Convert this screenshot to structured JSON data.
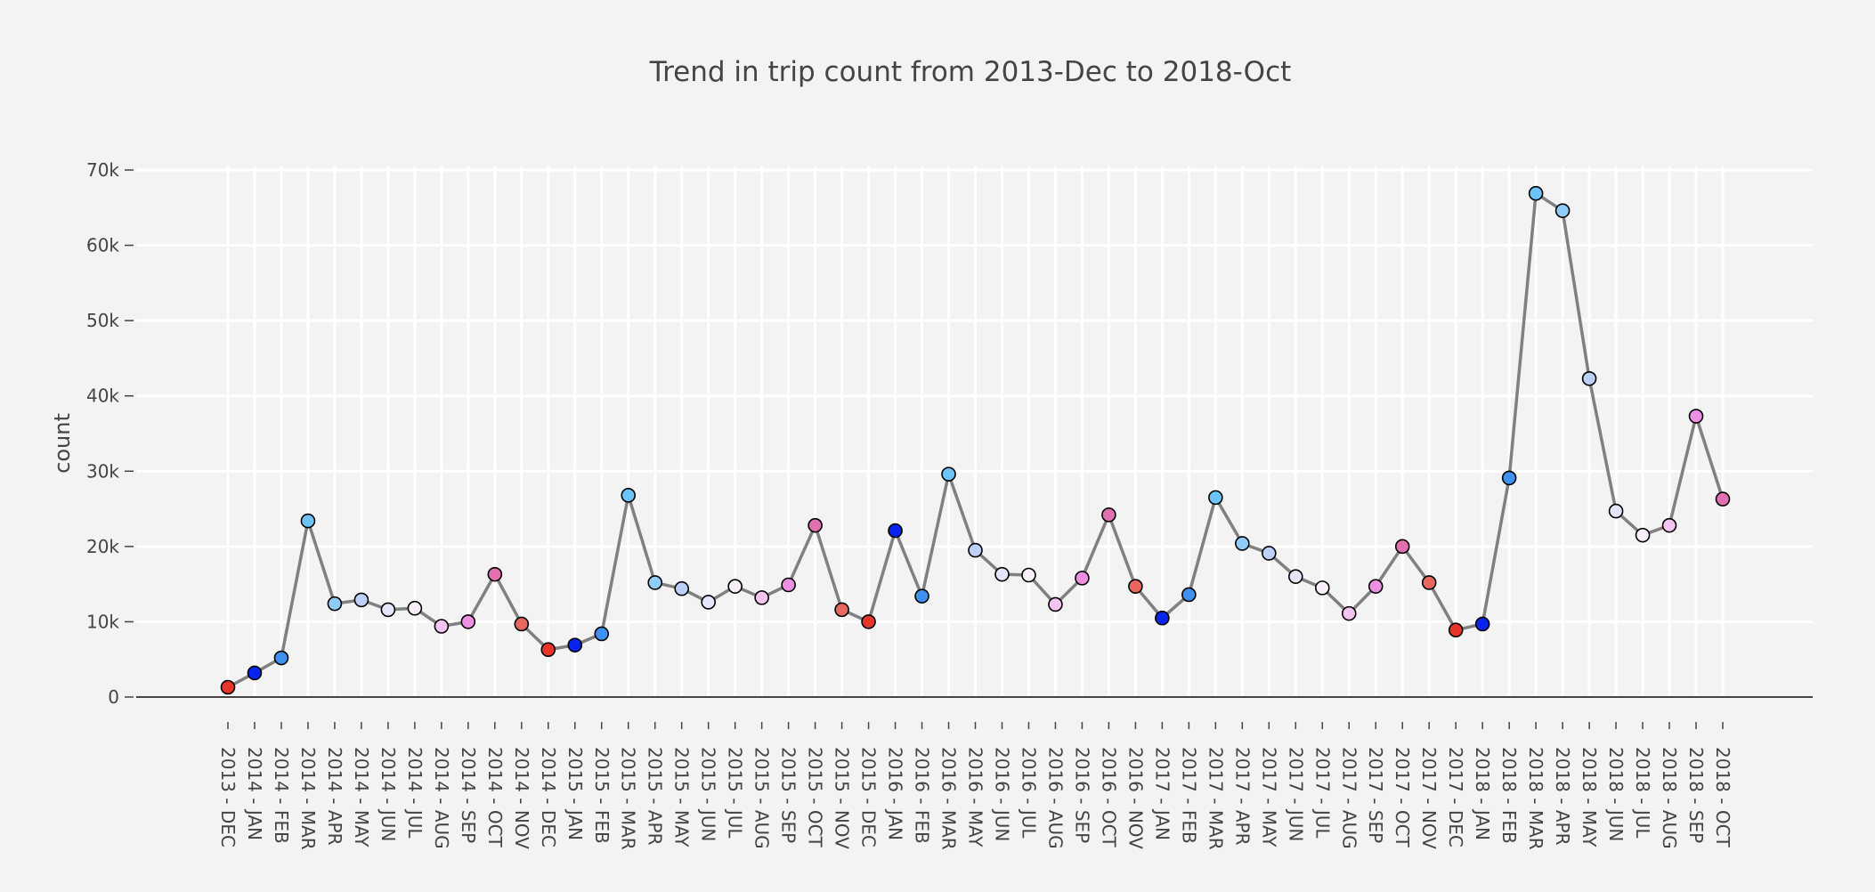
{
  "chart_data": {
    "type": "line",
    "title": "Trend in trip count from 2013-Dec to 2018-Oct",
    "xlabel": "",
    "ylabel": "count",
    "ylim": [
      0,
      70000
    ],
    "yticks": [
      0,
      10000,
      20000,
      30000,
      40000,
      50000,
      60000,
      70000
    ],
    "ytick_labels": [
      "0",
      "10k",
      "20k",
      "30k",
      "40k",
      "50k",
      "60k",
      "70k"
    ],
    "grid": true,
    "legend": "none",
    "line_color": "#808080",
    "month_colors": {
      "JAN": "#0a24f0",
      "FEB": "#4090f0",
      "MAR": "#6cc4f8",
      "APR": "#90ccf8",
      "MAY": "#bcd0f8",
      "JUN": "#e4e4fa",
      "JUL": "#f8eef8",
      "AUG": "#f4c4f0",
      "SEP": "#ec90e4",
      "OCT": "#e070b0",
      "NOV": "#e86860",
      "DEC": "#e8352a"
    },
    "categories": [
      "2013 - DEC",
      "2014 - JAN",
      "2014 - FEB",
      "2014 - MAR",
      "2014 - APR",
      "2014 - MAY",
      "2014 - JUN",
      "2014 - JUL",
      "2014 - AUG",
      "2014 - SEP",
      "2014 - OCT",
      "2014 - NOV",
      "2014 - DEC",
      "2015 - JAN",
      "2015 - FEB",
      "2015 - MAR",
      "2015 - APR",
      "2015 - MAY",
      "2015 - JUN",
      "2015 - JUL",
      "2015 - AUG",
      "2015 - SEP",
      "2015 - OCT",
      "2015 - NOV",
      "2015 - DEC",
      "2016 - JAN",
      "2016 - FEB",
      "2016 - MAR",
      "2016 - MAY",
      "2016 - JUN",
      "2016 - JUL",
      "2016 - AUG",
      "2016 - SEP",
      "2016 - OCT",
      "2016 - NOV",
      "2017 - JAN",
      "2017 - FEB",
      "2017 - MAR",
      "2017 - APR",
      "2017 - MAY",
      "2017 - JUN",
      "2017 - JUL",
      "2017 - AUG",
      "2017 - SEP",
      "2017 - OCT",
      "2017 - NOV",
      "2017 - DEC",
      "2018 - JAN",
      "2018 - FEB",
      "2018 - MAR",
      "2018 - APR",
      "2018 - MAY",
      "2018 - JUN",
      "2018 - JUL",
      "2018 - AUG",
      "2018 - SEP",
      "2018 - OCT"
    ],
    "values": [
      1300,
      3200,
      5200,
      23400,
      12400,
      12900,
      11600,
      11800,
      9400,
      10000,
      16300,
      9700,
      6300,
      6900,
      8400,
      26800,
      15200,
      14400,
      12600,
      14700,
      13200,
      14900,
      22800,
      11600,
      10000,
      22100,
      13400,
      29600,
      19500,
      16300,
      16200,
      12300,
      15800,
      24200,
      14700,
      10500,
      13600,
      26500,
      20400,
      19100,
      16000,
      14500,
      11100,
      14700,
      20000,
      15200,
      8900,
      9700,
      29100,
      66900,
      64600,
      42300,
      24700,
      21500,
      22800,
      37300,
      26300
    ]
  }
}
